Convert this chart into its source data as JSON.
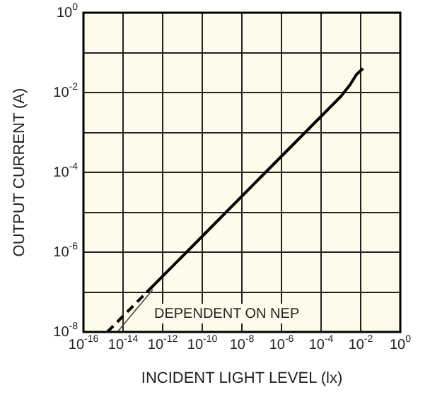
{
  "chart_data": {
    "type": "line",
    "xlabel": "INCIDENT LIGHT LEVEL (lx)",
    "ylabel": "OUTPUT CURRENT (A)",
    "series": [
      {
        "color": "#000000",
        "line_style": "dashed",
        "x": [
          1.6e-15,
          1.6e-13
        ],
        "values": [
          1e-08,
          1e-07
        ]
      },
      {
        "color": "#000000",
        "line_style": "solid",
        "x": [
          1.6e-13,
          1e-10,
          1e-07,
          1e-05,
          0.001,
          0.003,
          0.006,
          0.013
        ],
        "values": [
          1e-07,
          2.5e-06,
          8e-05,
          0.0008,
          0.008,
          0.016,
          0.028,
          0.04
        ]
      }
    ],
    "annotations": [
      "DEPENDENT ON NEP"
    ],
    "xlim": [
      1e-16,
      1
    ],
    "ylim": [
      1e-08,
      1
    ],
    "xticks": [
      {
        "value": 1e-16,
        "label": "10$^{-16}$"
      },
      {
        "value": 1e-14,
        "label": "10$^{-14}$"
      },
      {
        "value": 1e-12,
        "label": "10$^{-12}$"
      },
      {
        "value": 1e-10,
        "label": "10$^{-10}$"
      },
      {
        "value": 1e-08,
        "label": "10$^{-8}$"
      },
      {
        "value": 1e-06,
        "label": "10$^{-6}$"
      },
      {
        "value": 0.0001,
        "label": "10$^{-4}$"
      },
      {
        "value": 0.01,
        "label": "10$^{-2}$"
      },
      {
        "value": 1,
        "label": "10$^{0}$"
      }
    ],
    "yticks": [
      {
        "value": 1e-08,
        "label": "10$^{-8}$"
      },
      {
        "value": 1e-07,
        "label": null
      },
      {
        "value": 1e-06,
        "label": "10$^{-6}$"
      },
      {
        "value": 1e-05,
        "label": null
      },
      {
        "value": 0.0001,
        "label": "10$^{-4}$"
      },
      {
        "value": 0.001,
        "label": null
      },
      {
        "value": 0.01,
        "label": "10$^{-2}$"
      },
      {
        "value": 0.1,
        "label": null
      },
      {
        "value": 1,
        "label": "10$^{0}$"
      }
    ],
    "log": "xy",
    "grid": true,
    "legend": false,
    "marker": "none"
  }
}
